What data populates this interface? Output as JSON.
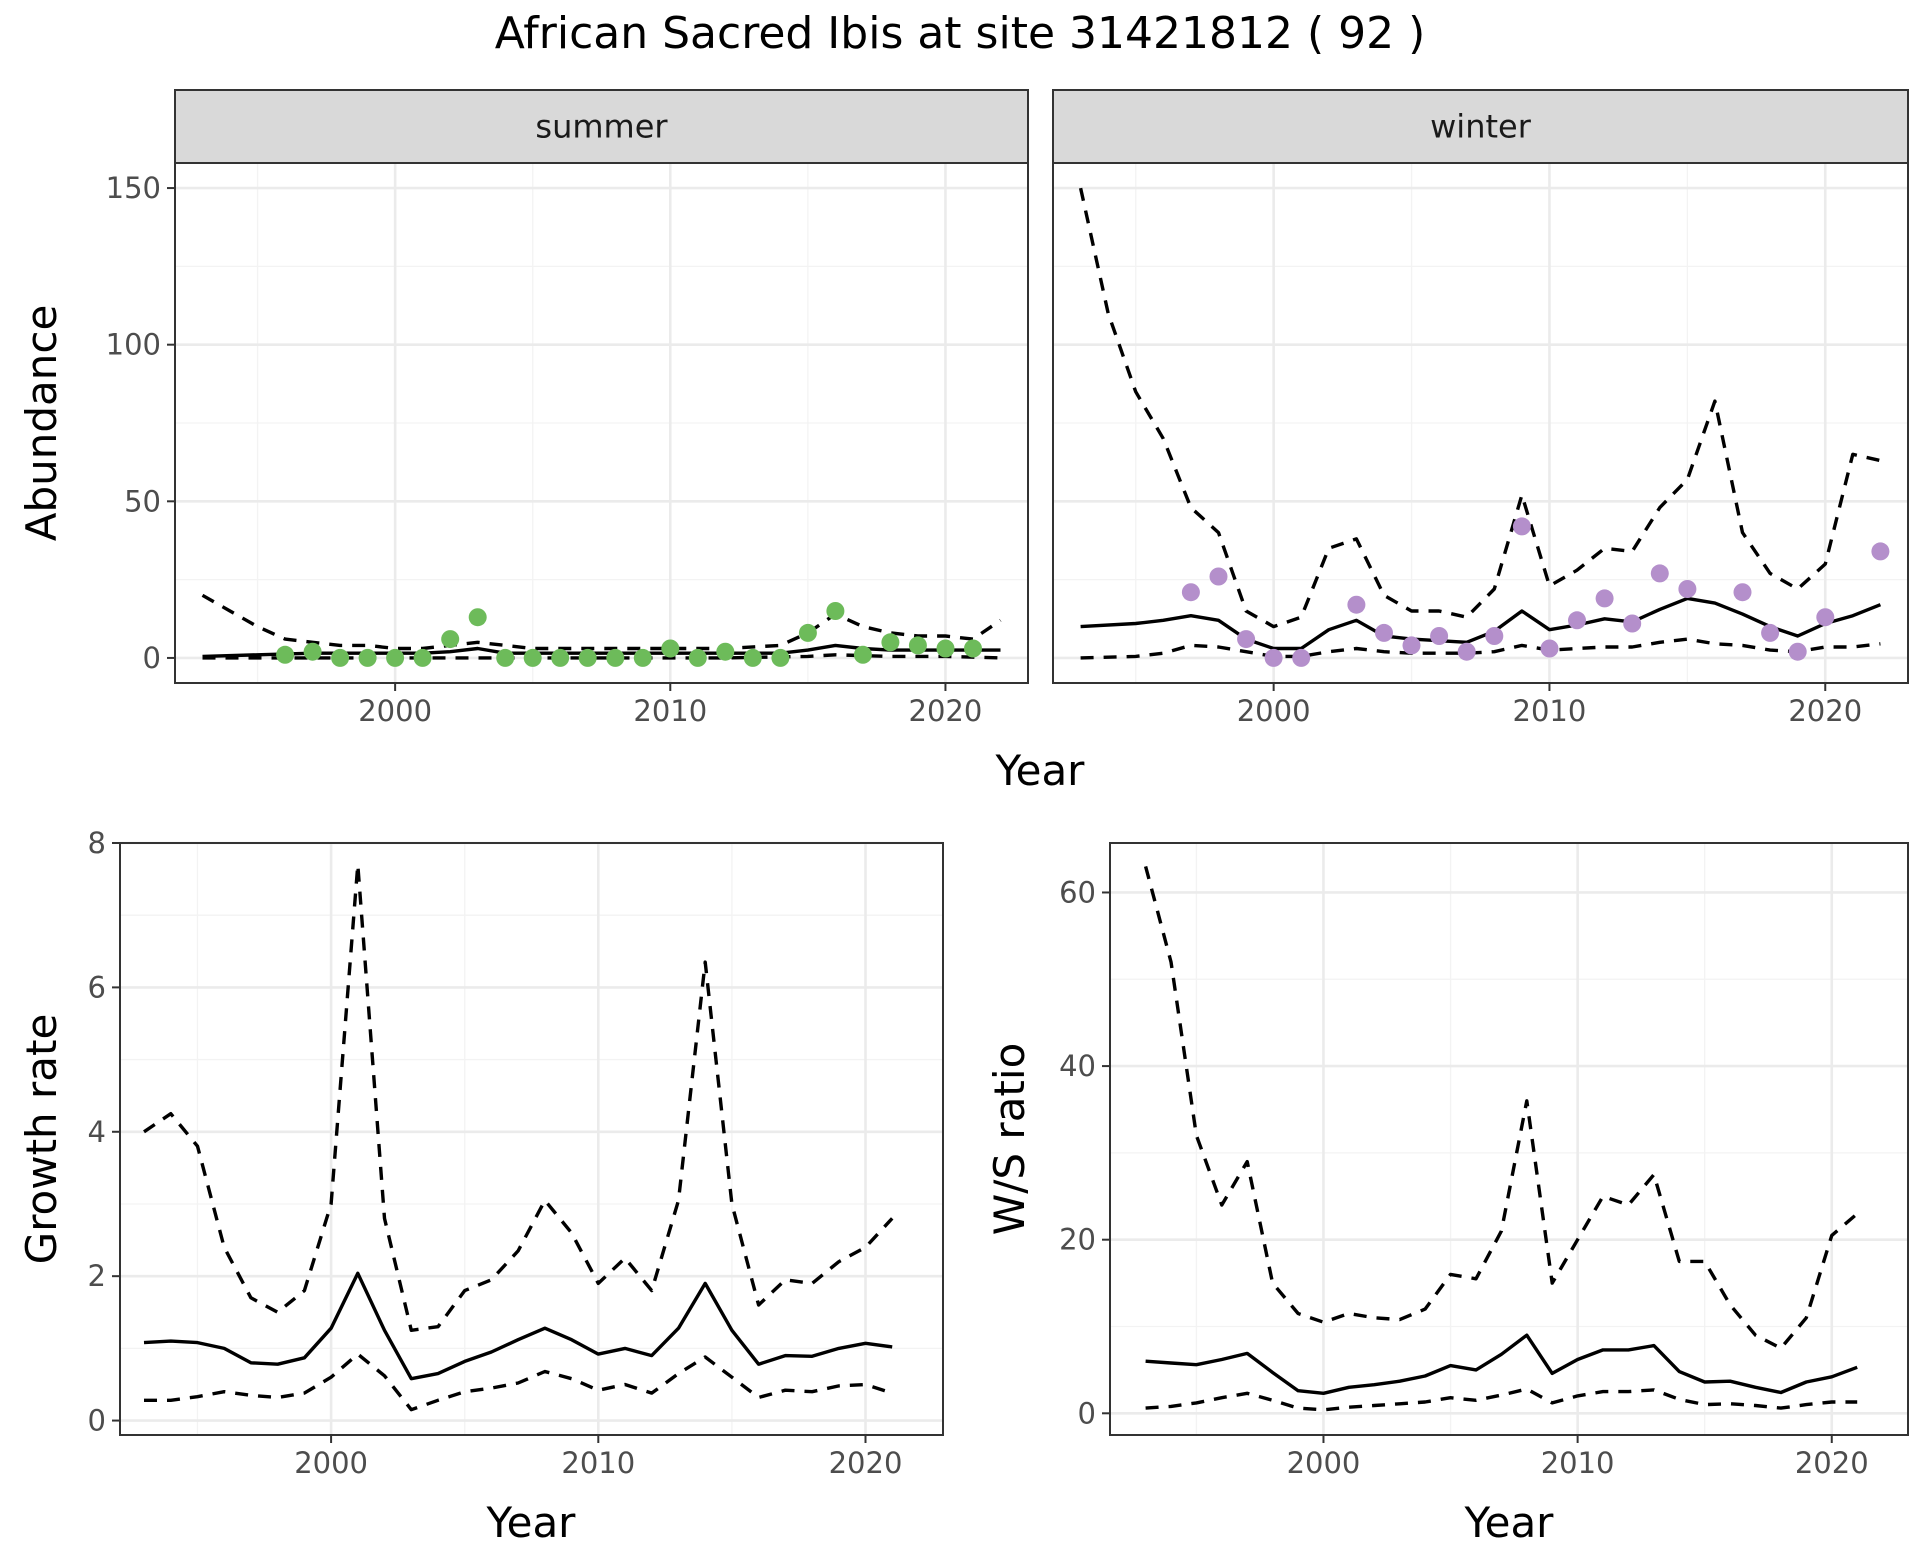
{
  "figure": {
    "title": "African Sacred Ibis at site 31421812 ( 92 )"
  },
  "chart_data": [
    {
      "type": "line",
      "panel": "summer",
      "strip_label": "summer",
      "ylabel": "Abundance",
      "xlabel": "Year",
      "shared_xlabel": true,
      "xlim": [
        1992,
        2023
      ],
      "ylim": [
        -8,
        158
      ],
      "xticks": [
        2000,
        2010,
        2020
      ],
      "yticks": [
        0,
        50,
        100,
        150
      ],
      "grid": true,
      "point_color": "#6dbb5a",
      "mean": {
        "x": [
          1993,
          1995,
          1997,
          1999,
          2001,
          2002,
          2003,
          2004,
          2005,
          2006,
          2008,
          2010,
          2012,
          2014,
          2015,
          2016,
          2017,
          2018,
          2020,
          2022
        ],
        "y": [
          0.5,
          1,
          1.5,
          1.5,
          1.5,
          2,
          3,
          1.5,
          1.5,
          1.5,
          1.5,
          1.5,
          1.5,
          1.5,
          2.5,
          4,
          3,
          2.5,
          2.5,
          2.5
        ]
      },
      "upper": {
        "x": [
          1993,
          1994,
          1995,
          1996,
          1997,
          1998,
          1999,
          2000,
          2001,
          2002,
          2003,
          2004,
          2005,
          2006,
          2008,
          2010,
          2012,
          2014,
          2015,
          2016,
          2017,
          2018,
          2019,
          2020,
          2021,
          2022
        ],
        "y": [
          20,
          15,
          10,
          6,
          5,
          4,
          4,
          3,
          3,
          4,
          5,
          4,
          3,
          3,
          3,
          3,
          3,
          4,
          8,
          14,
          10,
          8,
          7,
          7,
          6,
          12
        ]
      },
      "lower": {
        "x": [
          1993,
          1996,
          2000,
          2004,
          2008,
          2012,
          2015,
          2016,
          2018,
          2020,
          2022
        ],
        "y": [
          0,
          0,
          0,
          0,
          0,
          0,
          0.5,
          1,
          0.5,
          0.5,
          0
        ]
      },
      "points": {
        "x": [
          1996,
          1997,
          1998,
          1999,
          2000,
          2001,
          2002,
          2003,
          2004,
          2005,
          2006,
          2007,
          2008,
          2009,
          2010,
          2011,
          2012,
          2013,
          2014,
          2015,
          2016,
          2017,
          2018,
          2019,
          2020,
          2021
        ],
        "y": [
          1,
          2,
          0,
          0,
          0,
          0,
          6,
          13,
          0,
          0,
          0,
          0,
          0,
          0,
          3,
          0,
          2,
          0,
          0,
          8,
          15,
          1,
          5,
          4,
          3,
          3
        ]
      }
    },
    {
      "type": "line",
      "panel": "winter",
      "strip_label": "winter",
      "xlim": [
        1992,
        2023
      ],
      "ylim": [
        -8,
        158
      ],
      "xticks": [
        2000,
        2010,
        2020
      ],
      "grid": true,
      "point_color": "#b48fcb",
      "mean": {
        "x": [
          1993,
          1995,
          1996,
          1997,
          1998,
          1999,
          2000,
          2001,
          2002,
          2003,
          2004,
          2005,
          2006,
          2007,
          2008,
          2009,
          2010,
          2011,
          2012,
          2013,
          2014,
          2015,
          2016,
          2017,
          2018,
          2019,
          2020,
          2021,
          2022
        ],
        "y": [
          10,
          11,
          12,
          13.5,
          12,
          6,
          3,
          3,
          9,
          12,
          7,
          6,
          5.5,
          5,
          8.5,
          15,
          9,
          10.5,
          12.5,
          11.5,
          15.5,
          19,
          17.5,
          14,
          10,
          7,
          11,
          13.5,
          17
        ]
      },
      "upper": {
        "x": [
          1993,
          1994,
          1995,
          1996,
          1997,
          1998,
          1999,
          2000,
          2001,
          2002,
          2003,
          2004,
          2005,
          2006,
          2007,
          2008,
          2009,
          2010,
          2011,
          2012,
          2013,
          2014,
          2015,
          2016,
          2017,
          2018,
          2019,
          2020,
          2021,
          2022
        ],
        "y": [
          150,
          110,
          85,
          70,
          48,
          40,
          15,
          10,
          13,
          35,
          38,
          20,
          15,
          15,
          13,
          22,
          52,
          23,
          28,
          35,
          34,
          48,
          57,
          82,
          40,
          27,
          22,
          30,
          65,
          63
        ]
      },
      "lower": {
        "x": [
          1993,
          1995,
          1996,
          1997,
          1998,
          1999,
          2000,
          2001,
          2002,
          2003,
          2004,
          2005,
          2006,
          2007,
          2008,
          2009,
          2010,
          2011,
          2012,
          2013,
          2014,
          2015,
          2016,
          2017,
          2018,
          2019,
          2020,
          2021,
          2022
        ],
        "y": [
          0,
          0.5,
          1.5,
          4,
          3.5,
          2,
          0.5,
          0.5,
          2,
          3,
          2,
          1.5,
          1.5,
          1.5,
          2,
          4,
          2.5,
          3,
          3.5,
          3.5,
          5,
          6,
          4.5,
          4,
          2.5,
          2,
          3.5,
          3.5,
          4.5
        ]
      },
      "points": {
        "x": [
          1997,
          1998,
          1999,
          2000,
          2001,
          2003,
          2004,
          2005,
          2006,
          2007,
          2008,
          2009,
          2010,
          2011,
          2012,
          2013,
          2014,
          2015,
          2017,
          2018,
          2019,
          2020,
          2022
        ],
        "y": [
          21,
          26,
          6,
          0,
          0,
          17,
          8,
          4,
          7,
          2,
          7,
          42,
          3,
          12,
          19,
          11,
          27,
          22,
          21,
          8,
          2,
          13,
          34
        ]
      }
    },
    {
      "type": "line",
      "panel": "growth",
      "ylabel": "Growth rate",
      "xlabel": "Year",
      "xlim": [
        1992.1,
        2022.9
      ],
      "ylim": [
        -0.2,
        8
      ],
      "xticks": [
        2000,
        2010,
        2020
      ],
      "yticks": [
        0,
        2,
        4,
        6,
        8
      ],
      "grid": true,
      "mean": {
        "x": [
          1993,
          1994,
          1995,
          1996,
          1997,
          1998,
          1999,
          2000,
          2001,
          2002,
          2003,
          2004,
          2005,
          2006,
          2007,
          2008,
          2009,
          2010,
          2011,
          2012,
          2013,
          2014,
          2015,
          2016,
          2017,
          2018,
          2019,
          2020,
          2021
        ],
        "y": [
          1.08,
          1.1,
          1.08,
          1.0,
          0.8,
          0.78,
          0.87,
          1.28,
          2.04,
          1.25,
          0.58,
          0.65,
          0.82,
          0.95,
          1.12,
          1.28,
          1.12,
          0.92,
          1.0,
          0.9,
          1.28,
          1.9,
          1.25,
          0.78,
          0.9,
          0.89,
          1.0,
          1.07,
          1.02
        ]
      },
      "upper": {
        "x": [
          1993,
          1994,
          1995,
          1996,
          1997,
          1998,
          1999,
          2000,
          2001,
          2002,
          2003,
          2004,
          2005,
          2006,
          2007,
          2008,
          2009,
          2010,
          2011,
          2012,
          2013,
          2014,
          2015,
          2016,
          2017,
          2018,
          2019,
          2020,
          2021
        ],
        "y": [
          4.0,
          4.25,
          3.8,
          2.4,
          1.7,
          1.5,
          1.8,
          3.0,
          7.7,
          2.8,
          1.25,
          1.3,
          1.8,
          1.95,
          2.35,
          3.05,
          2.6,
          1.9,
          2.25,
          1.8,
          3.05,
          6.35,
          3.0,
          1.6,
          1.95,
          1.9,
          2.2,
          2.4,
          2.8
        ]
      },
      "lower": {
        "x": [
          1993,
          1994,
          1995,
          1996,
          1997,
          1998,
          1999,
          2000,
          2001,
          2002,
          2003,
          2004,
          2005,
          2006,
          2007,
          2008,
          2009,
          2010,
          2011,
          2012,
          2013,
          2014,
          2015,
          2016,
          2017,
          2018,
          2019,
          2020,
          2021
        ],
        "y": [
          0.28,
          0.28,
          0.33,
          0.4,
          0.35,
          0.32,
          0.38,
          0.6,
          0.92,
          0.62,
          0.15,
          0.28,
          0.4,
          0.45,
          0.52,
          0.68,
          0.58,
          0.42,
          0.5,
          0.38,
          0.65,
          0.88,
          0.6,
          0.32,
          0.42,
          0.4,
          0.48,
          0.5,
          0.38
        ]
      }
    },
    {
      "type": "line",
      "panel": "ratio",
      "ylabel": "W/S ratio",
      "xlabel": "Year",
      "xlim": [
        1991.6,
        2023.0
      ],
      "ylim": [
        -2.5,
        65.7
      ],
      "xticks": [
        2000,
        2010,
        2020
      ],
      "yticks": [
        0,
        20,
        40,
        60
      ],
      "grid": true,
      "mean": {
        "x": [
          1993,
          1994,
          1995,
          1996,
          1997,
          1998,
          1999,
          2000,
          2001,
          2002,
          2003,
          2004,
          2005,
          2006,
          2007,
          2008,
          2009,
          2010,
          2011,
          2012,
          2013,
          2014,
          2015,
          2016,
          2017,
          2018,
          2019,
          2020,
          2021
        ],
        "y": [
          6.0,
          5.8,
          5.6,
          6.2,
          6.9,
          4.7,
          2.6,
          2.3,
          3.0,
          3.3,
          3.7,
          4.3,
          5.5,
          5.0,
          6.8,
          9.0,
          4.6,
          6.2,
          7.3,
          7.3,
          7.8,
          4.8,
          3.6,
          3.7,
          3.0,
          2.4,
          3.6,
          4.2,
          5.3
        ]
      },
      "upper": {
        "x": [
          1993,
          1994,
          1995,
          1996,
          1997,
          1998,
          1999,
          2000,
          2001,
          2002,
          2003,
          2004,
          2005,
          2006,
          2007,
          2008,
          2009,
          2010,
          2011,
          2012,
          2013,
          2014,
          2015,
          2016,
          2017,
          2018,
          2019,
          2020,
          2021
        ],
        "y": [
          63,
          52,
          32,
          24,
          29,
          15,
          11.5,
          10.5,
          11.5,
          11,
          10.8,
          12,
          16,
          15.5,
          21,
          36,
          15,
          20,
          25,
          24,
          27.5,
          17.5,
          17.5,
          12.5,
          9,
          7.5,
          11,
          20.5,
          23
        ]
      },
      "lower": {
        "x": [
          1993,
          1994,
          1995,
          1996,
          1997,
          1998,
          1999,
          2000,
          2001,
          2002,
          2003,
          2004,
          2005,
          2006,
          2007,
          2008,
          2009,
          2010,
          2011,
          2012,
          2013,
          2014,
          2015,
          2016,
          2017,
          2018,
          2019,
          2020,
          2021
        ],
        "y": [
          0.6,
          0.8,
          1.2,
          1.8,
          2.3,
          1.5,
          0.6,
          0.4,
          0.7,
          0.9,
          1.1,
          1.3,
          1.8,
          1.5,
          2.1,
          2.8,
          1.2,
          2.0,
          2.5,
          2.5,
          2.7,
          1.6,
          1.0,
          1.1,
          0.9,
          0.6,
          1.0,
          1.3,
          1.3
        ]
      }
    }
  ]
}
